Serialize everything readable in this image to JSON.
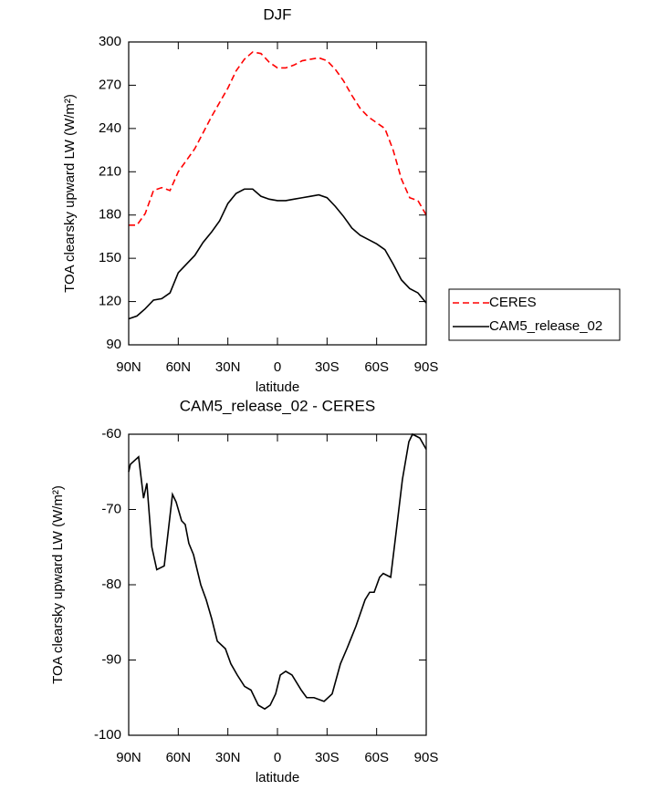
{
  "chart_data": [
    {
      "type": "line",
      "title": "DJF",
      "xlabel": "latitude",
      "ylabel": "TOA clearsky upward LW (W/m²)",
      "x": [
        90,
        85,
        80,
        75,
        70,
        65,
        60,
        55,
        50,
        45,
        40,
        35,
        30,
        25,
        20,
        15,
        10,
        5,
        0,
        -5,
        -10,
        -15,
        -20,
        -25,
        -30,
        -35,
        -40,
        -45,
        -50,
        -55,
        -60,
        -65,
        -70,
        -75,
        -80,
        -85,
        -90
      ],
      "series": [
        {
          "name": "CERES",
          "color": "#ff0000",
          "dash": true,
          "values": [
            173,
            173,
            181,
            197,
            199,
            197,
            210,
            218,
            226,
            237,
            248,
            258,
            268,
            280,
            288,
            293,
            292,
            286,
            282,
            282,
            284,
            287,
            288,
            289,
            287,
            281,
            273,
            263,
            254,
            248,
            244,
            240,
            225,
            205,
            192,
            190,
            180
          ]
        },
        {
          "name": "CAM5_release_02",
          "color": "#000000",
          "dash": false,
          "values": [
            108,
            110,
            115,
            121,
            122,
            126,
            140,
            146,
            152,
            161,
            168,
            176,
            188,
            195,
            198,
            198,
            193,
            191,
            190,
            190,
            191,
            192,
            193,
            194,
            192,
            186,
            179,
            171,
            166,
            163,
            160,
            156,
            146,
            135,
            129,
            126,
            119
          ]
        }
      ],
      "xlim": [
        90,
        -90
      ],
      "xticks": [
        {
          "value": 90,
          "label": "90N"
        },
        {
          "value": 60,
          "label": "60N"
        },
        {
          "value": 30,
          "label": "30N"
        },
        0,
        {
          "value": -30,
          "label": "30S"
        },
        {
          "value": -60,
          "label": "60S"
        },
        {
          "value": -90,
          "label": "90S"
        }
      ],
      "ylim": [
        90,
        300
      ],
      "yticks": [
        90,
        120,
        150,
        180,
        210,
        240,
        270,
        300
      ],
      "legend": "outside-right"
    },
    {
      "type": "line",
      "title": "CAM5_release_02 - CERES",
      "xlabel": "latitude",
      "ylabel": "TOA clearsky upward LW (W/m²)",
      "x": [
        90,
        89,
        84,
        81,
        79,
        76,
        73,
        68.5,
        63.5,
        61.3,
        58,
        55.8,
        53.6,
        50.8,
        46.4,
        43.1,
        39.8,
        36.4,
        31.5,
        28.2,
        24.3,
        19.9,
        16,
        11.6,
        7.7,
        4.4,
        1.1,
        -1.7,
        -5,
        -8.8,
        -14.4,
        -17.7,
        -22.1,
        -28.2,
        -33.1,
        -38.1,
        -42,
        -47.5,
        -53,
        -55.8,
        -58.5,
        -61.8,
        -64,
        -68.5,
        -71.8,
        -75.6,
        -79.5,
        -81.7,
        -86.1,
        -90
      ],
      "values": [
        -65,
        -64,
        -63,
        -68.5,
        -66.5,
        -75,
        -78,
        -77.5,
        -68,
        -69,
        -71.5,
        -72,
        -74.5,
        -76,
        -80,
        -82,
        -84.5,
        -87.5,
        -88.5,
        -90.5,
        -92,
        -93.5,
        -94,
        -96,
        -96.5,
        -96,
        -94.5,
        -92,
        -91.5,
        -92,
        -94,
        -95,
        -95,
        -95.5,
        -94.5,
        -90.5,
        -88.5,
        -85.5,
        -82,
        -81,
        -81,
        -79,
        -78.5,
        -79,
        -73,
        -66,
        -61,
        -60,
        -60.5,
        -62
      ],
      "color": "#000000",
      "xlim": [
        90,
        -90
      ],
      "xticks": [
        {
          "value": 90,
          "label": "90N"
        },
        {
          "value": 60,
          "label": "60N"
        },
        {
          "value": 30,
          "label": "30N"
        },
        0,
        {
          "value": -30,
          "label": "30S"
        },
        {
          "value": -60,
          "label": "60S"
        },
        {
          "value": -90,
          "label": "90S"
        }
      ],
      "ylim": [
        -100,
        -60
      ],
      "yticks": [
        -100,
        -90,
        -80,
        -70,
        -60
      ]
    }
  ]
}
